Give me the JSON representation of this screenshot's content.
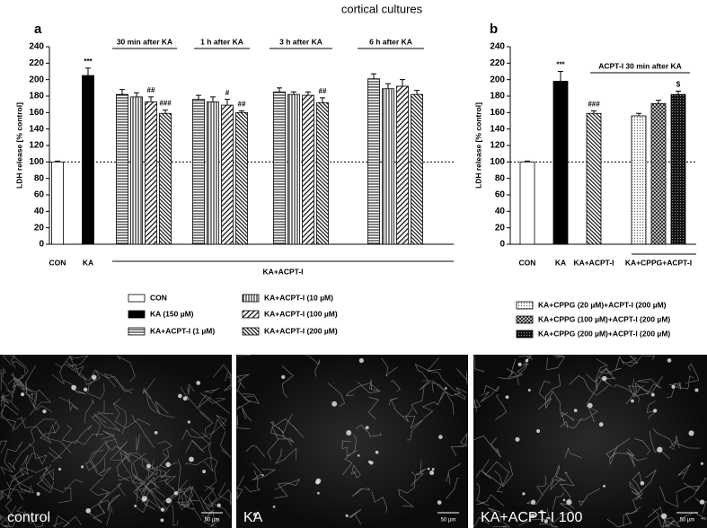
{
  "title": "cortical cultures",
  "chart_data": [
    {
      "type": "bar",
      "panel": "a",
      "ylabel": "LDH release [% control]",
      "ylim": [
        0,
        240
      ],
      "yticks": [
        0,
        20,
        40,
        60,
        80,
        100,
        120,
        140,
        160,
        180,
        200,
        220,
        240
      ],
      "reference_line": 100,
      "categories": [
        "CON",
        "KA",
        null,
        null,
        null,
        null
      ],
      "headings": [
        null,
        null,
        "30 min after KA",
        "1 h after KA",
        "3 h after KA",
        "6 h after KA"
      ],
      "span_label": "KA+ACPT-I",
      "series": [
        {
          "name": "CON",
          "pattern": "open",
          "values": [
            100,
            null,
            null,
            null,
            null,
            null
          ],
          "errors": [
            1,
            null,
            null,
            null,
            null,
            null
          ]
        },
        {
          "name": "KA (150 µM)",
          "pattern": "solid",
          "values": [
            null,
            205,
            null,
            null,
            null,
            null
          ],
          "errors": [
            null,
            9,
            null,
            null,
            null,
            null
          ],
          "annotations": [
            null,
            "***",
            null,
            null,
            null,
            null
          ]
        },
        {
          "name": "KA+ACPT-I (1 µM)",
          "pattern": "horizontal",
          "values": [
            null,
            null,
            182,
            176,
            185,
            201
          ],
          "errors": [
            null,
            null,
            6,
            5,
            5,
            6
          ]
        },
        {
          "name": "KA+ACPT-I (10 µM)",
          "pattern": "vertical",
          "values": [
            null,
            null,
            179,
            173,
            182,
            189
          ],
          "errors": [
            null,
            null,
            5,
            6,
            3,
            6
          ]
        },
        {
          "name": "KA+ACPT-I (100 µM)",
          "pattern": "diagonal",
          "values": [
            null,
            null,
            173,
            169,
            181,
            192
          ],
          "errors": [
            null,
            null,
            6,
            7,
            4,
            8
          ],
          "annotations": [
            null,
            null,
            "##",
            "#",
            null,
            null
          ]
        },
        {
          "name": "KA+ACPT-I (200 µM)",
          "pattern": "diagonal-dense",
          "values": [
            null,
            null,
            159,
            160,
            172,
            182
          ],
          "errors": [
            null,
            null,
            4,
            2,
            6,
            5
          ],
          "annotations": [
            null,
            null,
            "###",
            "##",
            "##",
            null
          ]
        }
      ]
    },
    {
      "type": "bar",
      "panel": "b",
      "ylabel": "LDH release [% control]",
      "ylim": [
        0,
        240
      ],
      "yticks": [
        0,
        20,
        40,
        60,
        80,
        100,
        120,
        140,
        160,
        180,
        200,
        220,
        240
      ],
      "reference_line": 100,
      "categories": [
        "CON",
        "KA",
        "KA+ACPT-I",
        "KA+CPPG+ACPT-I"
      ],
      "headings": [
        null,
        null,
        "ACPT-I 30 min after KA",
        null
      ],
      "series": [
        {
          "pattern": "open",
          "values": [
            100,
            null,
            null,
            null
          ],
          "errors": [
            1,
            null,
            null,
            null
          ]
        },
        {
          "pattern": "solid",
          "values": [
            null,
            198,
            null,
            null
          ],
          "errors": [
            null,
            12,
            null,
            null
          ],
          "annotations": [
            null,
            "***",
            null,
            null
          ]
        },
        {
          "pattern": "diagonal-dense",
          "values": [
            null,
            null,
            159,
            null
          ],
          "errors": [
            null,
            null,
            3,
            null
          ],
          "annotations": [
            null,
            null,
            "###",
            null
          ]
        },
        {
          "name": "KA+CPPG (20 µM)+ACPT-I (200 µM)",
          "pattern": "dots",
          "values": [
            null,
            null,
            null,
            156
          ],
          "errors": [
            null,
            null,
            null,
            3
          ]
        },
        {
          "name": "KA+CPPG (100 µM)+ACPT-I (200 µM)",
          "pattern": "checker",
          "values": [
            null,
            null,
            null,
            171
          ],
          "errors": [
            null,
            null,
            null,
            4
          ]
        },
        {
          "name": "KA+CPPG (200 µM)+ACPT-I (200 µM)",
          "pattern": "dots-dense",
          "values": [
            null,
            null,
            null,
            182
          ],
          "errors": [
            null,
            null,
            null,
            4
          ],
          "annotations": [
            null,
            null,
            null,
            "$"
          ]
        }
      ]
    }
  ],
  "images": [
    {
      "label": "control",
      "scale_label": "50 µm"
    },
    {
      "label": "KA",
      "scale_label": "50 µm"
    },
    {
      "label": "KA+ACPT-I 100",
      "scale_label": "50 µm"
    }
  ]
}
